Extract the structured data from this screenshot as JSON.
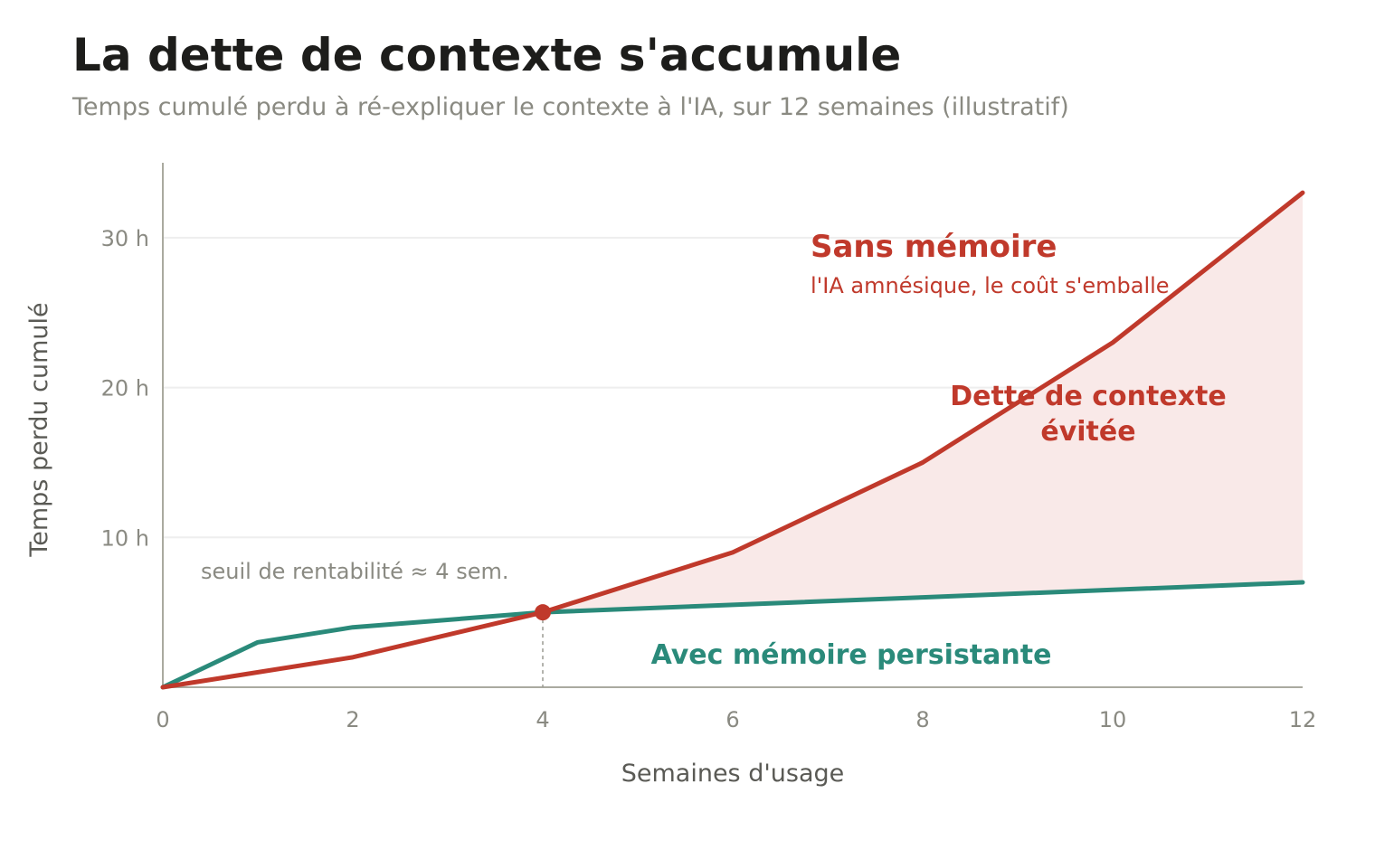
{
  "chart_data": {
    "type": "line",
    "title": "La dette de contexte s'accumule",
    "subtitle": "Temps cumulé perdu à ré-expliquer le contexte à l'IA, sur 12 semaines (illustratif)",
    "xlabel": "Semaines d'usage",
    "ylabel": "Temps perdu cumulé",
    "xlim": [
      0,
      12
    ],
    "ylim": [
      0,
      35
    ],
    "x_ticks": [
      0,
      2,
      4,
      6,
      8,
      10,
      12
    ],
    "x_tick_labels": [
      "0",
      "2",
      "4",
      "6",
      "8",
      "10",
      "12"
    ],
    "y_ticks": [
      10,
      20,
      30
    ],
    "y_tick_labels": [
      "10 h",
      "20 h",
      "30 h"
    ],
    "grid": "horizontal",
    "series": [
      {
        "name": "Sans mémoire",
        "color": "#c0392b",
        "x": [
          0,
          2,
          4,
          6,
          8,
          10,
          12
        ],
        "y": [
          0,
          2,
          5,
          9,
          15,
          23,
          33
        ]
      },
      {
        "name": "Avec mémoire persistante",
        "color": "#2a8a7a",
        "x": [
          0,
          1,
          2,
          4,
          6,
          8,
          10,
          12
        ],
        "y": [
          0,
          3,
          4,
          5,
          5.5,
          6,
          6.5,
          7
        ]
      }
    ],
    "shaded_area": {
      "label": "Dette de contexte évitée",
      "color": "#c0392b",
      "from_x": 4
    },
    "breakeven": {
      "x": 4,
      "y": 5,
      "label": "seuil de rentabilité ≈ 4 sem."
    },
    "annotations": {
      "sans_memoire_title": "Sans mémoire",
      "sans_memoire_subtitle": "l'IA amnésique, le coût s'emballe",
      "dette_line1": "Dette de contexte",
      "dette_line2": "évitée",
      "avec_memoire": "Avec mémoire persistante"
    },
    "colors": {
      "axis": "#aaaaa0",
      "grid": "#eeeeee",
      "shade": "#f9e9e8"
    }
  }
}
